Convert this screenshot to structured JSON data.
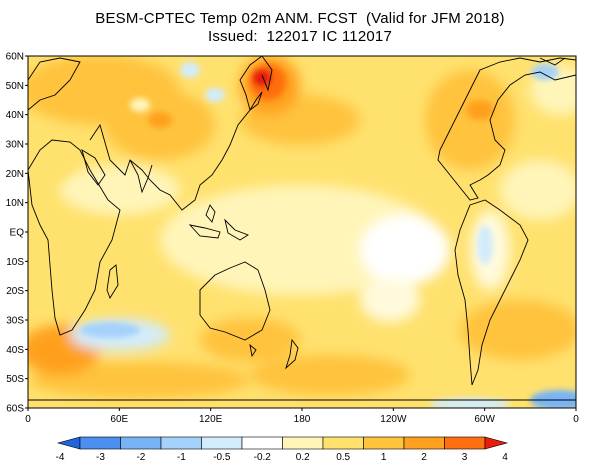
{
  "title": {
    "line1": "BESM-CPTEC Temp 02m ANM. FCST  (Valid for JFM 2018)",
    "line2": "Issued:  122017 IC 112017"
  },
  "axes": {
    "lat_labels": [
      "60N",
      "50N",
      "40N",
      "30N",
      "20N",
      "10N",
      "EQ",
      "10S",
      "20S",
      "30S",
      "40S",
      "50S",
      "60S"
    ],
    "lon_labels": [
      "0",
      "60E",
      "120E",
      "180",
      "120W",
      "60W",
      "0"
    ]
  },
  "colorbar": {
    "labels": [
      "-4",
      "-3",
      "-2",
      "-1",
      "-0.5",
      "-0.2",
      "0.2",
      "0.5",
      "1",
      "2",
      "3",
      "4"
    ],
    "colors": [
      "#1f64dc",
      "#4b8ff0",
      "#78b4f5",
      "#a5d2fa",
      "#d2ecfc",
      "#ffffff",
      "#fff5b9",
      "#ffe16e",
      "#ffc33c",
      "#ffa01e",
      "#ff6e0f",
      "#e61e0a"
    ]
  },
  "map_data": {
    "variable": "Temp 02m anomaly",
    "lat_range": [
      -60,
      60
    ],
    "lon_range": [
      0,
      360
    ]
  }
}
